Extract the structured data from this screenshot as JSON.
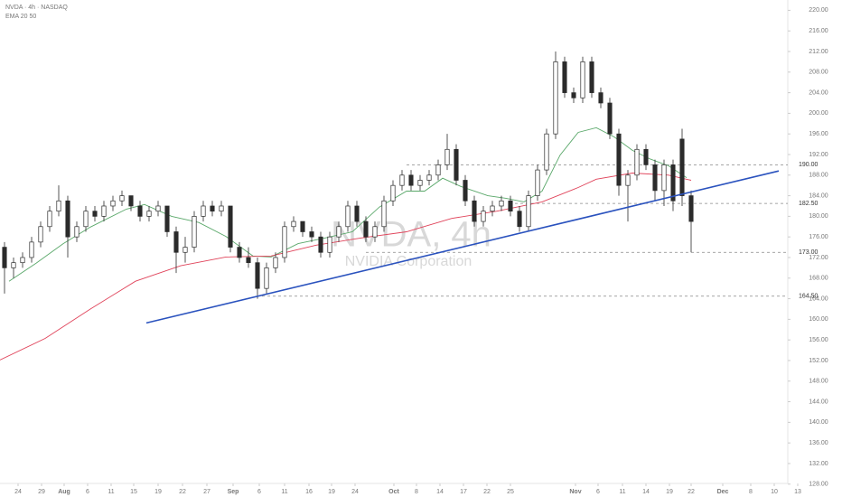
{
  "chart_data": {
    "type": "candlestick",
    "header": "NVDA · 4h · NASDAQ",
    "subheader": "EMA 20 50",
    "watermark_title": "NVDA, 4h",
    "watermark_subtitle": "NVIDIA Corporation",
    "xlim": [
      0,
      180
    ],
    "ylim": [
      125.5,
      222
    ],
    "xticks": [
      {
        "value": 4,
        "label": "24"
      },
      {
        "value": 9.2,
        "label": "29"
      },
      {
        "value": 14.2,
        "label": "Aug"
      },
      {
        "value": 19.4,
        "label": "6"
      },
      {
        "value": 24.6,
        "label": "11"
      },
      {
        "value": 29.6,
        "label": "15"
      },
      {
        "value": 35,
        "label": "19"
      },
      {
        "value": 40.4,
        "label": "22"
      },
      {
        "value": 45.8,
        "label": "27"
      },
      {
        "value": 51.6,
        "label": "Sep"
      },
      {
        "value": 57.4,
        "label": "6"
      },
      {
        "value": 63,
        "label": "11"
      },
      {
        "value": 68.4,
        "label": "16"
      },
      {
        "value": 73.4,
        "label": "19"
      },
      {
        "value": 78.6,
        "label": "24"
      },
      {
        "value": 87.2,
        "label": "Oct"
      },
      {
        "value": 92.2,
        "label": "8"
      },
      {
        "value": 97.4,
        "label": "14"
      },
      {
        "value": 102.6,
        "label": "17"
      },
      {
        "value": 107.8,
        "label": "22"
      },
      {
        "value": 113,
        "label": "25"
      },
      {
        "value": 127.4,
        "label": "Nov"
      },
      {
        "value": 132.4,
        "label": "6"
      },
      {
        "value": 137.8,
        "label": "11"
      },
      {
        "value": 143,
        "label": "14"
      },
      {
        "value": 148.2,
        "label": "19"
      },
      {
        "value": 153,
        "label": "22"
      },
      {
        "value": 160,
        "label": "Dec"
      },
      {
        "value": 166.2,
        "label": "8"
      },
      {
        "value": 171.4,
        "label": "10"
      },
      {
        "value": 176.6,
        "label": "13"
      }
    ],
    "yticks": [
      {
        "value": 128,
        "label": "128.00"
      },
      {
        "value": 132,
        "label": "132.00"
      },
      {
        "value": 136,
        "label": "136.00"
      },
      {
        "value": 140,
        "label": "140.00"
      },
      {
        "value": 144,
        "label": "144.00"
      },
      {
        "value": 148,
        "label": "148.00"
      },
      {
        "value": 152,
        "label": "152.00"
      },
      {
        "value": 156,
        "label": "156.00"
      },
      {
        "value": 160,
        "label": "160.00"
      },
      {
        "value": 164,
        "label": "164.00"
      },
      {
        "value": 168,
        "label": "168.00"
      },
      {
        "value": 172,
        "label": "172.00"
      },
      {
        "value": 176,
        "label": "176.00"
      },
      {
        "value": 180,
        "label": "180.00"
      },
      {
        "value": 184,
        "label": "184.00"
      },
      {
        "value": 188,
        "label": "188.00"
      },
      {
        "value": 192,
        "label": "192.00"
      },
      {
        "value": 196,
        "label": "196.00"
      },
      {
        "value": 200,
        "label": "200.00"
      },
      {
        "value": 204,
        "label": "204.00"
      },
      {
        "value": 208,
        "label": "208.00"
      },
      {
        "value": 212,
        "label": "212.00"
      },
      {
        "value": 216,
        "label": "216.00"
      },
      {
        "value": 220,
        "label": "220.00"
      }
    ],
    "up_color": "#ffffff",
    "down_color": "#2b2b2b",
    "candles": {
      "x": [
        1,
        3,
        5,
        7,
        9,
        11,
        13,
        15,
        17,
        19,
        21,
        23,
        25,
        27,
        29,
        31,
        33,
        35,
        37,
        39,
        41,
        43,
        45,
        47,
        49,
        51,
        53,
        55,
        57,
        59,
        61,
        63,
        65,
        67,
        69,
        71,
        73,
        75,
        77,
        79,
        81,
        83,
        85,
        87,
        89,
        91,
        93,
        95,
        97,
        99,
        101,
        103,
        105,
        107,
        109,
        111,
        113,
        115,
        117,
        119,
        121,
        123,
        125,
        127,
        129,
        131,
        133,
        135,
        137,
        139,
        141,
        143,
        145,
        147,
        149,
        151,
        153
      ],
      "open": [
        174,
        170,
        171,
        172,
        175,
        178,
        181,
        183,
        176,
        178,
        181,
        180,
        182,
        183,
        184,
        182,
        180,
        181,
        182,
        177,
        173,
        174,
        180,
        182,
        181,
        182,
        174,
        172,
        171,
        166,
        170,
        172,
        178,
        179,
        177,
        176,
        173,
        176,
        178,
        182,
        179,
        176,
        178,
        183,
        186,
        188,
        186,
        187,
        188,
        190,
        193,
        187,
        183,
        179,
        181,
        182,
        183,
        181,
        178,
        184,
        189,
        196,
        210,
        204,
        203,
        210,
        204,
        202,
        196,
        186,
        188,
        193,
        190,
        185,
        190,
        195,
        184
      ],
      "high": [
        175,
        172,
        173,
        176,
        179,
        182,
        186,
        184,
        179,
        182,
        182,
        183,
        184,
        185,
        184,
        183,
        182,
        183,
        182,
        178,
        176,
        181,
        183,
        183,
        183,
        182,
        175,
        174,
        172,
        171,
        173,
        179,
        180,
        179,
        178,
        177,
        177,
        179,
        183,
        183,
        180,
        179,
        184,
        187,
        189,
        189,
        188,
        189,
        191,
        196,
        194,
        188,
        184,
        182,
        183,
        184,
        184,
        182,
        185,
        190,
        197,
        212,
        211,
        205,
        211,
        211,
        205,
        203,
        197,
        189,
        194,
        194,
        191,
        191,
        191,
        197,
        185
      ],
      "low": [
        165,
        168,
        170,
        171,
        174,
        177,
        180,
        172,
        175,
        177,
        179,
        179,
        181,
        182,
        181,
        179,
        179,
        180,
        176,
        169,
        171,
        173,
        179,
        180,
        180,
        173,
        171,
        170,
        164,
        165,
        169,
        171,
        177,
        176,
        175,
        172,
        172,
        175,
        177,
        178,
        175,
        175,
        177,
        182,
        185,
        185,
        185,
        186,
        187,
        189,
        186,
        182,
        178,
        178,
        180,
        181,
        180,
        177,
        177,
        183,
        188,
        195,
        203,
        202,
        202,
        203,
        201,
        195,
        184,
        179,
        187,
        189,
        183,
        182,
        181,
        182,
        173
      ],
      "close": [
        170,
        171,
        172,
        175,
        178,
        181,
        183,
        176,
        178,
        181,
        180,
        182,
        183,
        184,
        182,
        180,
        181,
        182,
        177,
        173,
        174,
        180,
        182,
        181,
        182,
        174,
        172,
        171,
        166,
        170,
        172,
        178,
        179,
        177,
        176,
        173,
        176,
        178,
        182,
        179,
        176,
        178,
        183,
        186,
        188,
        186,
        187,
        188,
        190,
        193,
        187,
        183,
        179,
        181,
        182,
        183,
        181,
        178,
        184,
        189,
        196,
        210,
        204,
        203,
        210,
        204,
        202,
        196,
        186,
        188,
        193,
        190,
        185,
        190,
        183,
        184,
        179
      ]
    },
    "lines": [
      {
        "color": "#5aa86a",
        "x": [
          2,
          8,
          14,
          20,
          28,
          32,
          38,
          44,
          50,
          56,
          60,
          66,
          72,
          78,
          84,
          90,
          94,
          98,
          102,
          108,
          112,
          116,
          120,
          124,
          128,
          132,
          136,
          140,
          144,
          148,
          152
        ],
        "values": [
          167.4,
          170.9,
          174.7,
          177.9,
          181.4,
          182.3,
          180,
          178.8,
          176.1,
          172.3,
          172.1,
          174.7,
          175.8,
          177,
          181.8,
          184.9,
          184.9,
          187.4,
          185.8,
          184,
          183.5,
          182.8,
          184.9,
          191.9,
          196.3,
          197.2,
          195.4,
          192.8,
          191.1,
          189.8,
          187.5
        ]
      },
      {
        "color": "#e0435a",
        "x": [
          0,
          10,
          20,
          30,
          40,
          50,
          60,
          70,
          80,
          90,
          100,
          110,
          120,
          128,
          132,
          140,
          148,
          153
        ],
        "values": [
          152.1,
          156.3,
          162,
          167.4,
          170.4,
          172.1,
          172.3,
          174.4,
          175.8,
          177,
          179.6,
          181,
          182.8,
          185.6,
          187.2,
          188.4,
          188,
          187
        ]
      }
    ],
    "trendline": {
      "color": "#2a52be",
      "x": [
        32.4,
        172.4
      ],
      "values": [
        159.3,
        188.8
      ]
    },
    "levels": [
      {
        "value": 190,
        "label": "190.00",
        "x_start": 90
      },
      {
        "value": 182.5,
        "label": "182.50",
        "x_start": 114
      },
      {
        "value": 173,
        "label": "173.00",
        "x_start": 81
      },
      {
        "value": 164.5,
        "label": "164.50",
        "x_start": 58
      }
    ]
  }
}
